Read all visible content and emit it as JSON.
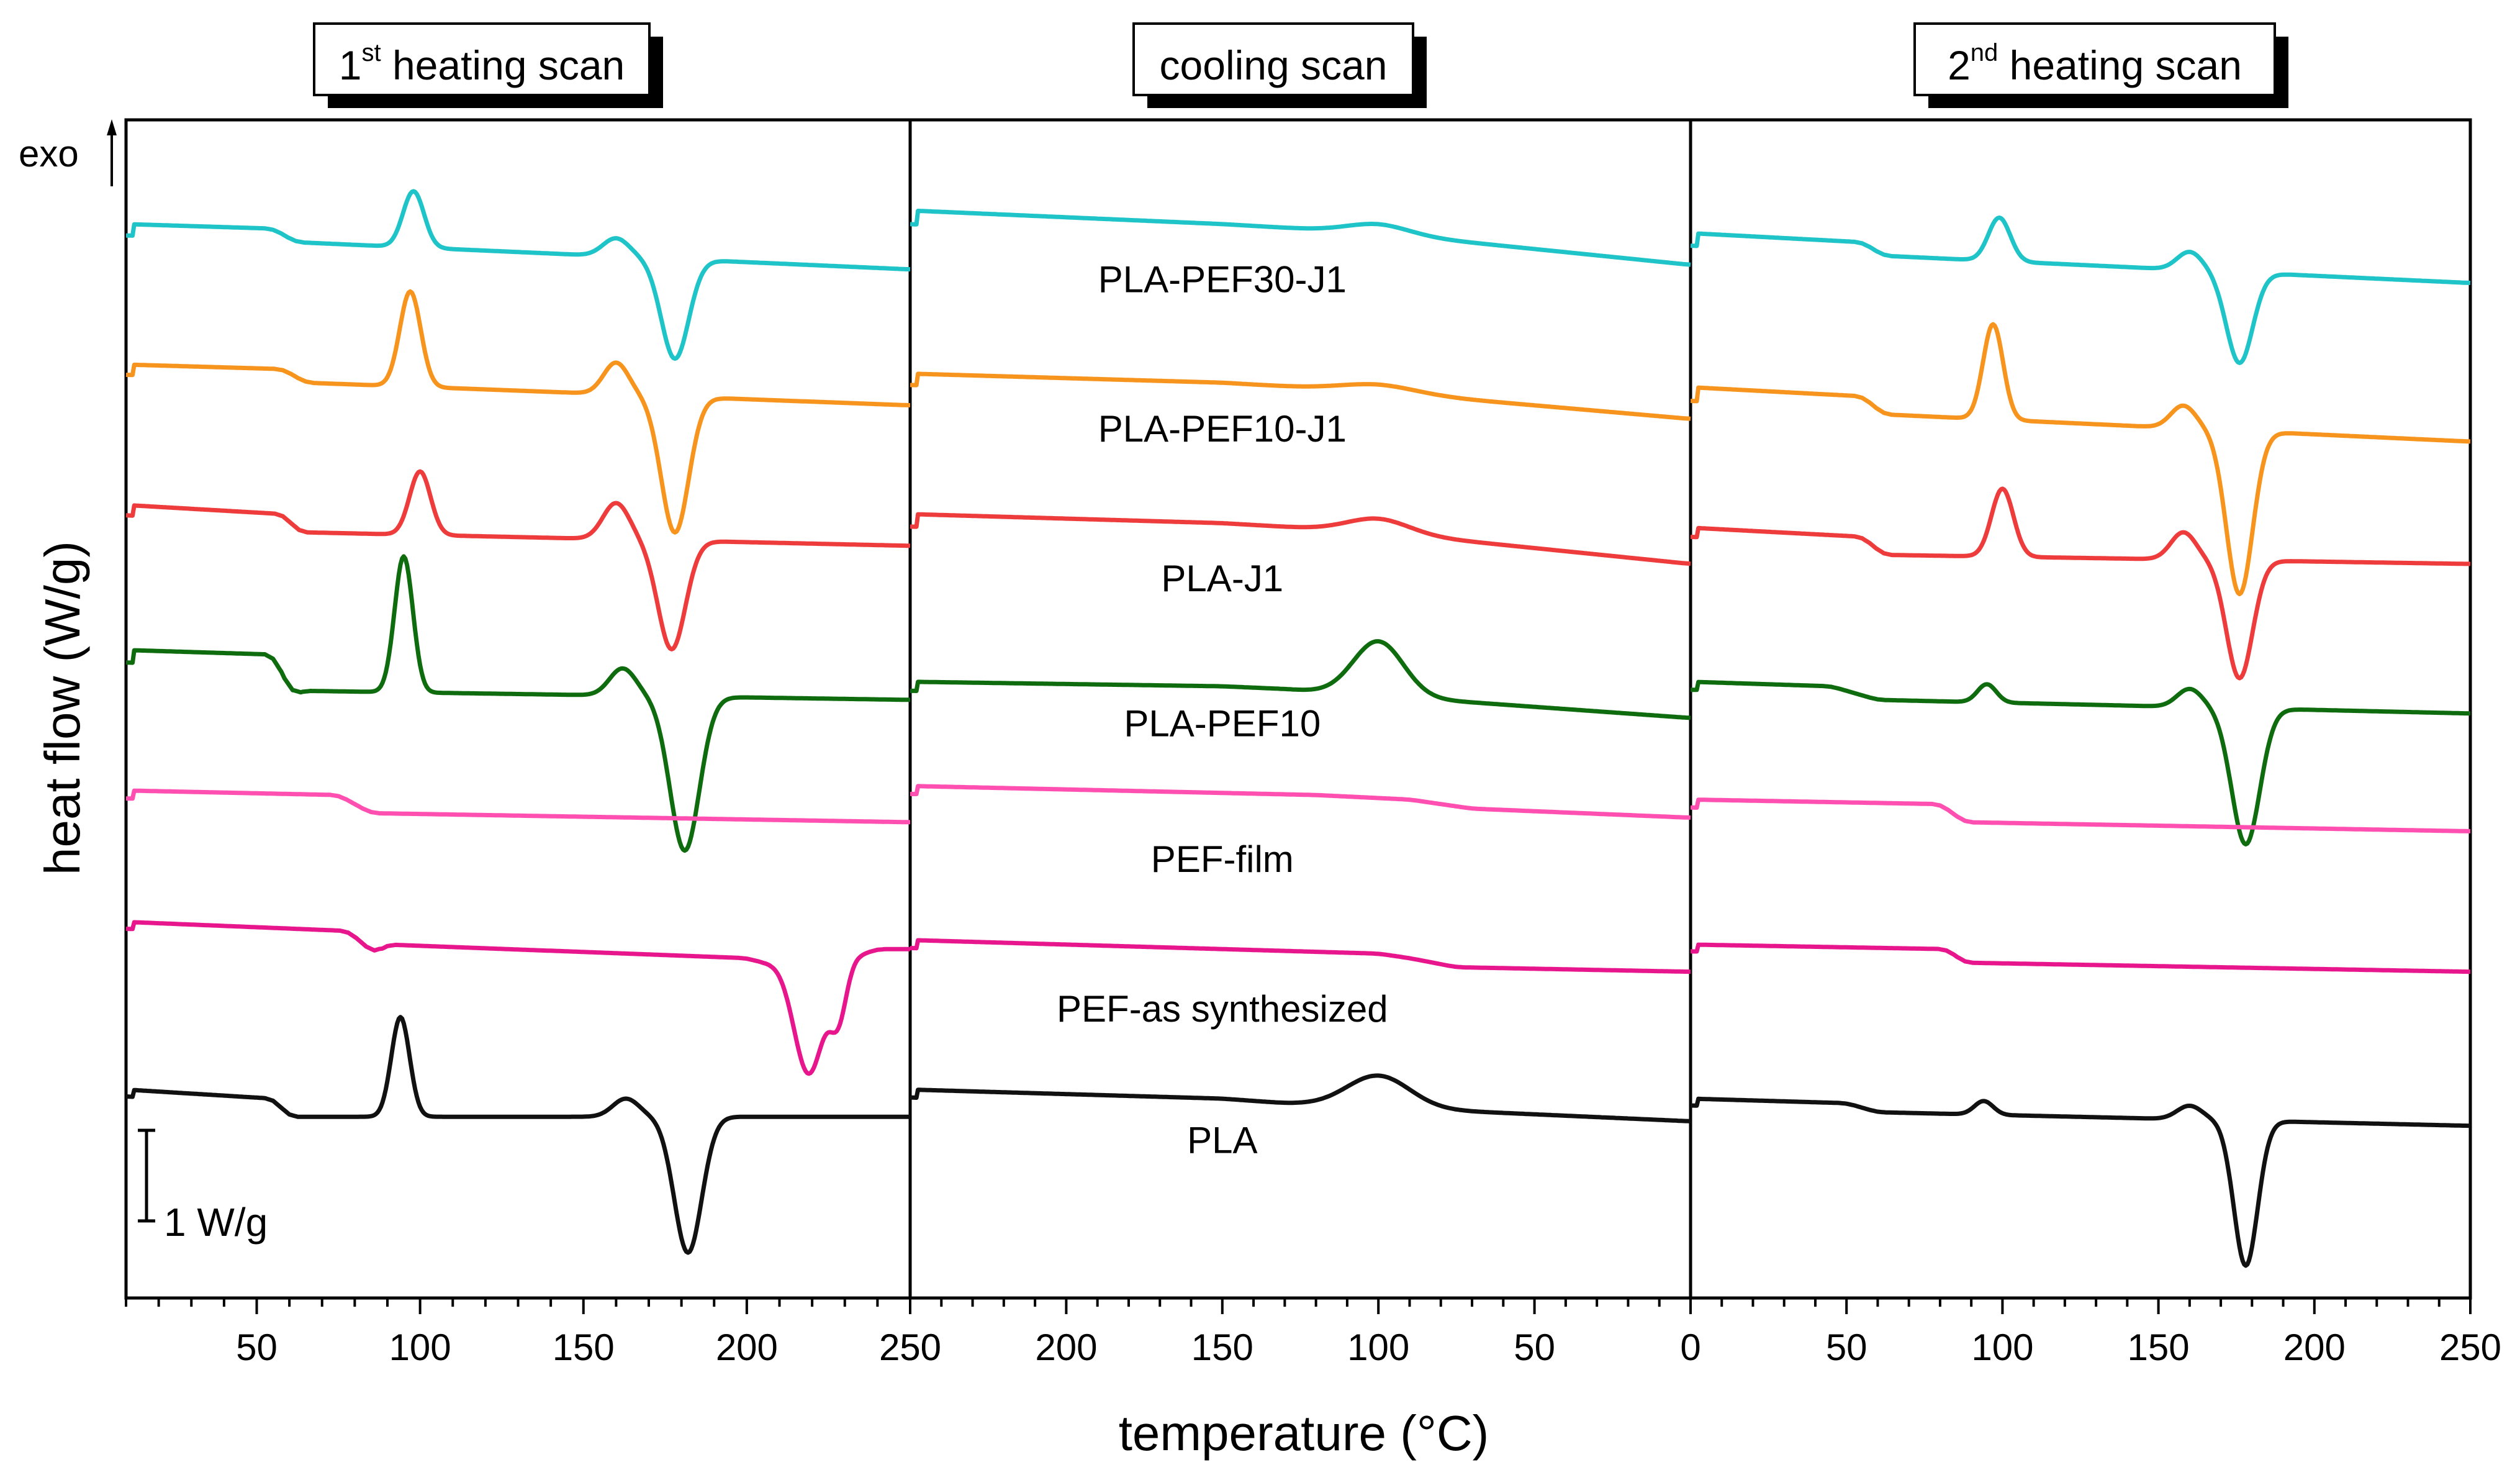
{
  "chart_data": {
    "type": "line",
    "title": "",
    "ylabel": "heat flow (W/g)",
    "xlabel": "temperature (°C)",
    "exo_label": "exo",
    "scale_bar_label": "1 W/g",
    "scale_bar_value_wg": 1,
    "panels": [
      {
        "id": "h1",
        "title_main": "1",
        "title_sup": "st",
        "title_rest": " heating scan",
        "xlim": [
          10,
          250
        ],
        "ticks": [
          "50",
          "100",
          "150",
          "200",
          "250"
        ],
        "tick_values": [
          50,
          100,
          150,
          200,
          250
        ]
      },
      {
        "id": "cool",
        "title_main": "cooling scan",
        "title_sup": "",
        "title_rest": "",
        "xlim": [
          250,
          0
        ],
        "ticks": [
          "250",
          "200",
          "150",
          "100",
          "50"
        ],
        "tick_values": [
          250,
          200,
          150,
          100,
          50
        ]
      },
      {
        "id": "h2",
        "title_main": "2",
        "title_sup": "nd",
        "title_rest": " heating scan",
        "xlim": [
          0,
          250
        ],
        "ticks": [
          "0",
          "50",
          "100",
          "150",
          "200",
          "250"
        ],
        "tick_values": [
          0,
          50,
          100,
          150,
          200,
          250
        ]
      }
    ],
    "series": [
      {
        "name": "PLA-PEF30-J1",
        "color": "#1fc4c8",
        "h1": {
          "baseline": [
            [
              10,
              9.55
            ],
            [
              55,
              9.5
            ],
            [
              62,
              9.35
            ],
            [
              250,
              9.05
            ]
          ],
          "peaks": [
            [
              98,
              0.62,
              3.2
            ],
            [
              160,
              0.2,
              4
            ],
            [
              178,
              -1.1,
              4.2
            ]
          ]
        },
        "cool": {
          "baseline": [
            [
              250,
              9.7
            ],
            [
              150,
              9.55
            ],
            [
              100,
              9.45
            ],
            [
              0,
              9.1
            ]
          ],
          "peaks": [
            [
              100,
              0.1,
              10
            ]
          ]
        },
        "h2": {
          "baseline": [
            [
              0,
              9.45
            ],
            [
              55,
              9.35
            ],
            [
              62,
              9.2
            ],
            [
              250,
              8.9
            ]
          ],
          "peaks": [
            [
              99,
              0.48,
              3.5
            ],
            [
              160,
              0.2,
              4
            ],
            [
              176,
              -1.0,
              4.2
            ]
          ]
        }
      },
      {
        "name": "PLA-PEF10-J1",
        "color": "#f7941d",
        "h1": {
          "baseline": [
            [
              10,
              8.0
            ],
            [
              58,
              7.95
            ],
            [
              65,
              7.8
            ],
            [
              250,
              7.55
            ]
          ],
          "peaks": [
            [
              97,
              1.05,
              3.2
            ],
            [
              160,
              0.35,
              3.8
            ],
            [
              178,
              -1.5,
              4.2
            ]
          ]
        },
        "cool": {
          "baseline": [
            [
              250,
              7.9
            ],
            [
              150,
              7.8
            ],
            [
              100,
              7.7
            ],
            [
              0,
              7.4
            ]
          ],
          "peaks": [
            [
              100,
              0.08,
              12
            ]
          ]
        },
        "h2": {
          "baseline": [
            [
              0,
              7.75
            ],
            [
              55,
              7.65
            ],
            [
              62,
              7.45
            ],
            [
              250,
              7.15
            ]
          ],
          "peaks": [
            [
              97,
              1.05,
              3.2
            ],
            [
              158,
              0.25,
              4
            ],
            [
              176,
              -1.8,
              4.2
            ]
          ]
        }
      },
      {
        "name": "PLA-J1",
        "color": "#ee3b3b",
        "h1": {
          "baseline": [
            [
              10,
              6.45
            ],
            [
              58,
              6.35
            ],
            [
              63,
              6.15
            ],
            [
              250,
              6.0
            ]
          ],
          "peaks": [
            [
              100,
              0.7,
              3.2
            ],
            [
              160,
              0.4,
              4
            ],
            [
              177,
              -1.2,
              4.2
            ]
          ]
        },
        "cool": {
          "baseline": [
            [
              250,
              6.35
            ],
            [
              150,
              6.25
            ],
            [
              100,
              6.15
            ],
            [
              0,
              5.8
            ]
          ],
          "peaks": [
            [
              100,
              0.15,
              10
            ]
          ]
        },
        "h2": {
          "baseline": [
            [
              0,
              6.2
            ],
            [
              55,
              6.1
            ],
            [
              62,
              5.9
            ],
            [
              250,
              5.8
            ]
          ],
          "peaks": [
            [
              100,
              0.75,
              3.5
            ],
            [
              158,
              0.3,
              4
            ],
            [
              176,
              -1.3,
              4.2
            ]
          ]
        }
      },
      {
        "name": "PLA-PEF10",
        "color": "#0e6b0e",
        "h1": {
          "baseline": [
            [
              10,
              4.85
            ],
            [
              55,
              4.8
            ],
            [
              61,
              4.35
            ],
            [
              64,
              4.4
            ],
            [
              250,
              4.3
            ]
          ],
          "peaks": [
            [
              95,
              1.5,
              2.8
            ],
            [
              162,
              0.3,
              4
            ],
            [
              181,
              -1.7,
              4.5
            ]
          ]
        },
        "cool": {
          "baseline": [
            [
              250,
              4.5
            ],
            [
              150,
              4.45
            ],
            [
              130,
              4.42
            ],
            [
              0,
              4.1
            ]
          ],
          "peaks": [
            [
              100,
              0.6,
              8
            ]
          ]
        },
        "h2": {
          "baseline": [
            [
              0,
              4.5
            ],
            [
              45,
              4.45
            ],
            [
              60,
              4.3
            ],
            [
              250,
              4.15
            ]
          ],
          "peaks": [
            [
              95,
              0.2,
              3
            ],
            [
              160,
              0.2,
              4
            ],
            [
              178,
              -1.5,
              4.5
            ]
          ]
        }
      },
      {
        "name": "PEF-film",
        "color": "#ff4fb0",
        "h1": {
          "baseline": [
            [
              10,
              3.3
            ],
            [
              75,
              3.25
            ],
            [
              85,
              3.05
            ],
            [
              250,
              2.95
            ]
          ],
          "peaks": []
        },
        "cool": {
          "baseline": [
            [
              250,
              3.35
            ],
            [
              120,
              3.25
            ],
            [
              90,
              3.2
            ],
            [
              70,
              3.1
            ],
            [
              0,
              3.0
            ]
          ],
          "peaks": []
        },
        "h2": {
          "baseline": [
            [
              0,
              3.2
            ],
            [
              80,
              3.15
            ],
            [
              88,
              2.95
            ],
            [
              250,
              2.85
            ]
          ],
          "peaks": []
        }
      },
      {
        "name": "PEF-as synthesized",
        "color": "#e8168c",
        "h1": {
          "baseline": [
            [
              10,
              1.85
            ],
            [
              78,
              1.75
            ],
            [
              86,
              1.5
            ],
            [
              90,
              1.6
            ],
            [
              200,
              1.45
            ],
            [
              205,
              1.4
            ],
            [
              232,
              1.45
            ],
            [
              240,
              1.55
            ],
            [
              250,
              1.55
            ]
          ],
          "peaks": [
            [
              219,
              -1.25,
              4.5
            ],
            [
              228,
              -0.6,
              2.5
            ]
          ]
        },
        "cool": {
          "baseline": [
            [
              250,
              1.65
            ],
            [
              100,
              1.5
            ],
            [
              90,
              1.45
            ],
            [
              75,
              1.35
            ],
            [
              0,
              1.3
            ]
          ],
          "peaks": []
        },
        "h2": {
          "baseline": [
            [
              0,
              1.6
            ],
            [
              82,
              1.55
            ],
            [
              88,
              1.4
            ],
            [
              250,
              1.3
            ]
          ],
          "peaks": []
        }
      },
      {
        "name": "PLA",
        "color": "#111111",
        "h1": {
          "baseline": [
            [
              10,
              0.0
            ],
            [
              55,
              -0.1
            ],
            [
              60,
              -0.3
            ],
            [
              64,
              -0.3
            ],
            [
              250,
              -0.3
            ]
          ],
          "peaks": [
            [
              94,
              1.1,
              2.8
            ],
            [
              163,
              0.2,
              4
            ],
            [
              182,
              -1.5,
              4.2
            ]
          ]
        },
        "cool": {
          "baseline": [
            [
              250,
              0.0
            ],
            [
              150,
              -0.1
            ],
            [
              130,
              -0.15
            ],
            [
              0,
              -0.35
            ]
          ],
          "peaks": [
            [
              100,
              0.35,
              10
            ]
          ]
        },
        "h2": {
          "baseline": [
            [
              0,
              -0.1
            ],
            [
              50,
              -0.15
            ],
            [
              60,
              -0.25
            ],
            [
              250,
              -0.4
            ]
          ],
          "peaks": [
            [
              94,
              0.15,
              3
            ],
            [
              160,
              0.15,
              4
            ],
            [
              178,
              -1.6,
              3.8
            ]
          ]
        }
      }
    ],
    "label_positions": [
      {
        "name": "PLA-PEF30-J1",
        "temp": 150,
        "y": 8.8
      },
      {
        "name": "PLA-PEF10-J1",
        "temp": 150,
        "y": 7.15
      },
      {
        "name": "PLA-J1",
        "temp": 150,
        "y": 5.5
      },
      {
        "name": "PLA-PEF10",
        "temp": 150,
        "y": 3.9
      },
      {
        "name": "PEF-film",
        "temp": 150,
        "y": 2.4
      },
      {
        "name": "PEF-as synthesized",
        "temp": 150,
        "y": 0.75
      },
      {
        "name": "PLA",
        "temp": 150,
        "y": -0.7
      }
    ],
    "ylim": [
      -2.3,
      10.7
    ]
  }
}
